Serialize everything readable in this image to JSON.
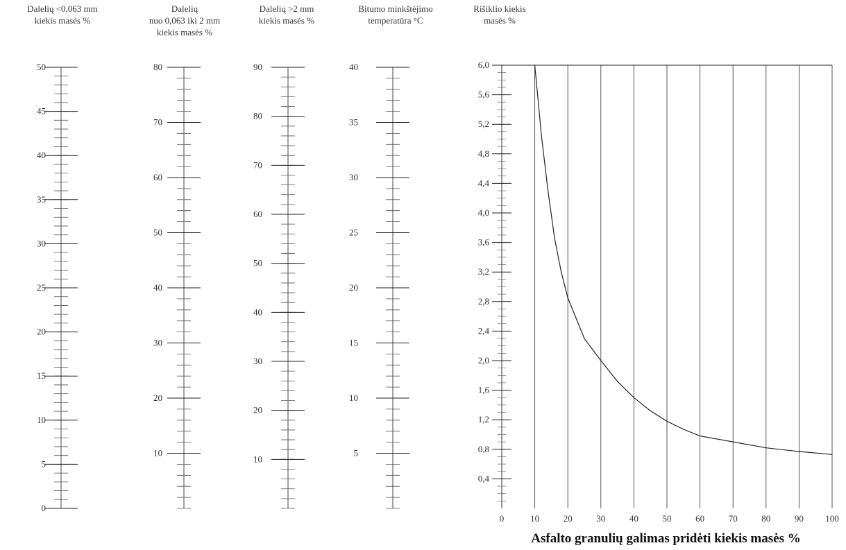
{
  "headers": {
    "scale1": {
      "line1": "Dalelių <0,063 mm",
      "line2": "kiekis  masės %",
      "line3": ""
    },
    "scale2": {
      "line1": "Dalelių",
      "line2": "nuo 0,063 iki 2 mm",
      "line3": "kiekis masės %"
    },
    "scale3": {
      "line1": "Dalelių  >2 mm",
      "line2": "kiekis masės %",
      "line3": ""
    },
    "scale4": {
      "line1": "Bitumo minkštėjimo",
      "line2": "temperatūra °C",
      "line3": ""
    },
    "scale5": {
      "line1": "Rišiklio kiekis",
      "line2": "masės %",
      "line3": ""
    }
  },
  "chart_data": [
    {
      "type": "nomogram-scale",
      "name": "Dalelių <0,063 mm kiekis masės %",
      "range": [
        0,
        50
      ],
      "tick_labels": [
        "0",
        "5",
        "10",
        "15",
        "20",
        "25",
        "30",
        "35",
        "40",
        "45",
        "50"
      ]
    },
    {
      "type": "nomogram-scale",
      "name": "Dalelių nuo 0,063 iki 2 mm kiekis masės %",
      "range": [
        0,
        80
      ],
      "tick_labels": [
        "10",
        "20",
        "30",
        "40",
        "50",
        "60",
        "70",
        "80"
      ]
    },
    {
      "type": "nomogram-scale",
      "name": "Dalelių >2 mm kiekis masės %",
      "range": [
        0,
        90
      ],
      "tick_labels": [
        "10",
        "20",
        "30",
        "40",
        "50",
        "60",
        "70",
        "80",
        "90"
      ]
    },
    {
      "type": "nomogram-scale",
      "name": "Bitumo minkštėjimo temperatūra °C",
      "range": [
        0,
        40
      ],
      "tick_labels": [
        "5",
        "10",
        "15",
        "20",
        "25",
        "30",
        "35",
        "40"
      ]
    },
    {
      "type": "line",
      "xlabel": "Asfalto granulių galimas pridėti kiekis masės %",
      "ylabel": "Rišiklio kiekis masės %",
      "xlim": [
        0,
        100
      ],
      "ylim": [
        0,
        6.0
      ],
      "x_tick_labels": [
        "0",
        "10",
        "20",
        "30",
        "40",
        "50",
        "60",
        "70",
        "80",
        "90",
        "100"
      ],
      "y_tick_labels": [
        "0,4",
        "0,8",
        "1,2",
        "1,6",
        "2,0",
        "2,4",
        "2,8",
        "3,2",
        "3,6",
        "4,0",
        "4,4",
        "4,8",
        "5,2",
        "5,6",
        "6,0"
      ],
      "grid": "vertical",
      "series": [
        {
          "x": [
            10,
            12,
            14,
            16,
            18,
            20,
            25,
            30,
            35,
            40,
            45,
            50,
            55,
            60,
            70,
            80,
            90,
            100
          ],
          "y": [
            6.0,
            5.05,
            4.3,
            3.65,
            3.2,
            2.85,
            2.3,
            2.0,
            1.72,
            1.5,
            1.32,
            1.18,
            1.07,
            0.98,
            0.9,
            0.82,
            0.77,
            0.73
          ]
        }
      ]
    }
  ]
}
